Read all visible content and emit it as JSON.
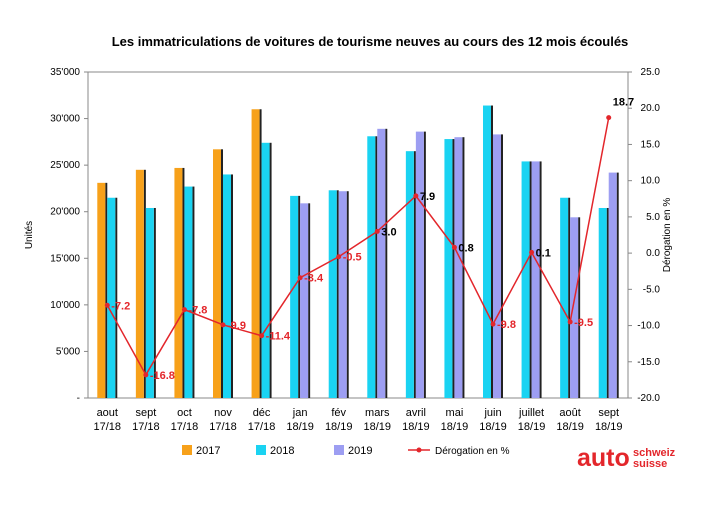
{
  "chart_data": {
    "type": "bar-line",
    "title": "Les immatriculations de voitures de tourisme neuves au cours des 12 mois écoulés",
    "y_label": "Unités",
    "y2_label": "Dérogation en %",
    "categories": [
      [
        "aout",
        "17/18"
      ],
      [
        "sept",
        "17/18"
      ],
      [
        "oct",
        "17/18"
      ],
      [
        "nov",
        "17/18"
      ],
      [
        "déc",
        "17/18"
      ],
      [
        "jan",
        "18/19"
      ],
      [
        "fév",
        "18/19"
      ],
      [
        "mars",
        "18/19"
      ],
      [
        "avril",
        "18/19"
      ],
      [
        "mai",
        "18/19"
      ],
      [
        "juin",
        "18/19"
      ],
      [
        "juillet",
        "18/19"
      ],
      [
        "août",
        "18/19"
      ],
      [
        "sept",
        "18/19"
      ]
    ],
    "series": [
      {
        "name": "2017",
        "color": "#f7a11a",
        "values": [
          23100,
          24500,
          24700,
          26700,
          31000,
          null,
          null,
          null,
          null,
          null,
          null,
          null,
          null,
          null
        ]
      },
      {
        "name": "2018",
        "color": "#1ad3f2",
        "values": [
          21500,
          20400,
          22700,
          24000,
          27400,
          21700,
          22300,
          28100,
          26500,
          27800,
          31400,
          25400,
          21500,
          20400
        ]
      },
      {
        "name": "2019",
        "color": "#9d9ef2",
        "values": [
          null,
          null,
          null,
          null,
          null,
          20900,
          22200,
          28900,
          28600,
          28000,
          28300,
          25400,
          19400,
          24200
        ]
      },
      {
        "name": "Dérogation en %",
        "color": "#e3262b",
        "axis": "y2",
        "type": "line",
        "values": [
          -7.2,
          -16.8,
          -7.8,
          -9.9,
          -11.4,
          -3.4,
          -0.5,
          3.0,
          7.9,
          0.8,
          -9.8,
          0.1,
          -9.5,
          18.7
        ],
        "value_labels": [
          "-7.2",
          "-16.8",
          "-7.8",
          "-9.9",
          "-11.4",
          "-3.4",
          "-0.5",
          "3.0",
          "7.9",
          "0.8",
          "-9.8",
          "0.1",
          "-9.5",
          "18.7"
        ]
      }
    ],
    "ylim": [
      0,
      35000
    ],
    "yticks": [
      {
        "value": 0,
        "label": "-"
      },
      {
        "value": 5000,
        "label": "5'000"
      },
      {
        "value": 10000,
        "label": "10'000"
      },
      {
        "value": 15000,
        "label": "15'000"
      },
      {
        "value": 20000,
        "label": "20'000"
      },
      {
        "value": 25000,
        "label": "25'000"
      },
      {
        "value": 30000,
        "label": "30'000"
      },
      {
        "value": 35000,
        "label": "35'000"
      }
    ],
    "y2lim": [
      -20,
      25
    ],
    "y2ticks": [
      {
        "value": -20,
        "label": "-20.0"
      },
      {
        "value": -15,
        "label": "-15.0"
      },
      {
        "value": -10,
        "label": "-10.0"
      },
      {
        "value": -5,
        "label": "-5.0"
      },
      {
        "value": 0,
        "label": "0.0"
      },
      {
        "value": 5,
        "label": "5.0"
      },
      {
        "value": 10,
        "label": "10.0"
      },
      {
        "value": 15,
        "label": "15.0"
      },
      {
        "value": 20,
        "label": "20.0"
      },
      {
        "value": 25,
        "label": "25.0"
      }
    ],
    "grid": false,
    "legend": "bottom"
  },
  "logo": {
    "brand": "auto",
    "lines": [
      "schweiz",
      "suisse"
    ]
  }
}
